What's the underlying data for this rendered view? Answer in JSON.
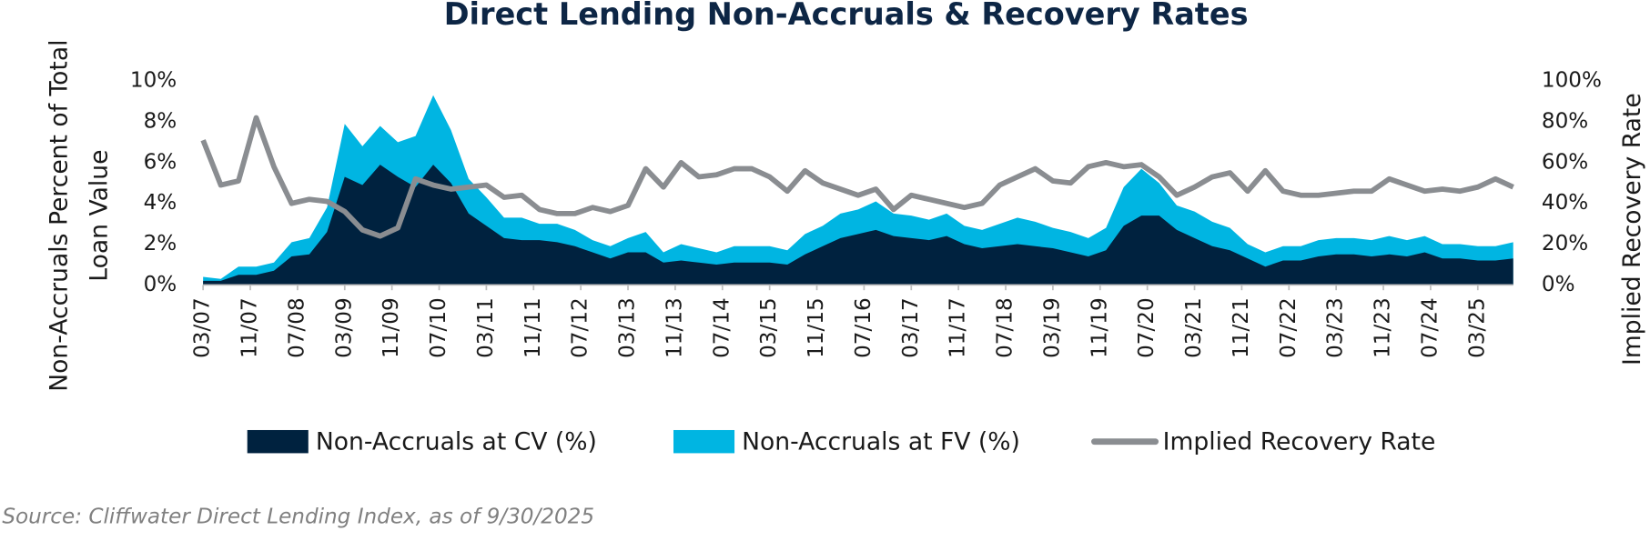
{
  "chart_data": {
    "type": "area-line",
    "title": "Direct Lending Non-Accruals & Recovery Rates",
    "y_label": [
      "Non-Accruals Percent of Total",
      "Loan Value"
    ],
    "y2_label": "Implied Recovery Rate",
    "source": "Source: Cliffwater Direct Lending Index, as of 9/30/2025",
    "x": [
      "03/07",
      "06/07",
      "09/07",
      "12/07",
      "03/08",
      "06/08",
      "09/08",
      "12/08",
      "03/09",
      "06/09",
      "09/09",
      "12/09",
      "03/10",
      "06/10",
      "09/10",
      "12/10",
      "03/11",
      "06/11",
      "09/11",
      "12/11",
      "03/12",
      "06/12",
      "09/12",
      "12/12",
      "03/13",
      "06/13",
      "09/13",
      "12/13",
      "03/14",
      "06/14",
      "09/14",
      "12/14",
      "03/15",
      "06/15",
      "09/15",
      "12/15",
      "03/16",
      "06/16",
      "09/16",
      "12/16",
      "03/17",
      "06/17",
      "09/17",
      "12/17",
      "03/18",
      "06/18",
      "09/18",
      "12/18",
      "03/19",
      "06/19",
      "09/19",
      "12/19",
      "03/20",
      "06/20",
      "09/20",
      "12/20",
      "03/21",
      "06/21",
      "09/21",
      "12/21",
      "03/22",
      "06/22",
      "09/22",
      "12/22",
      "03/23",
      "06/23",
      "09/23",
      "12/23",
      "03/24",
      "06/24",
      "09/24",
      "12/24",
      "03/25",
      "06/25",
      "09/25"
    ],
    "xticks": [
      "03/07",
      "11/07",
      "07/08",
      "03/09",
      "11/09",
      "07/10",
      "03/11",
      "11/11",
      "07/12",
      "03/13",
      "11/13",
      "07/14",
      "03/15",
      "11/15",
      "07/16",
      "03/17",
      "11/17",
      "07/18",
      "03/19",
      "11/19",
      "07/20",
      "03/21",
      "11/21",
      "07/22",
      "03/23",
      "11/23",
      "07/24",
      "03/25"
    ],
    "ylim": [
      0,
      10
    ],
    "yticks": [
      {
        "value": 0,
        "label": "0%"
      },
      {
        "value": 2,
        "label": "2%"
      },
      {
        "value": 4,
        "label": "4%"
      },
      {
        "value": 6,
        "label": "6%"
      },
      {
        "value": 8,
        "label": "8%"
      },
      {
        "value": 10,
        "label": "10%"
      }
    ],
    "y2lim": [
      0,
      100
    ],
    "y2ticks": [
      {
        "value": 0,
        "label": "0%"
      },
      {
        "value": 20,
        "label": "20%"
      },
      {
        "value": 40,
        "label": "40%"
      },
      {
        "value": 60,
        "label": "60%"
      },
      {
        "value": 80,
        "label": "80%"
      },
      {
        "value": 100,
        "label": "100%"
      }
    ],
    "series": [
      {
        "name": "Non-Accruals at CV (%)",
        "kind": "area",
        "color": "#00223f",
        "values": [
          0.2,
          0.2,
          0.5,
          0.5,
          0.7,
          1.4,
          1.5,
          2.6,
          5.3,
          4.9,
          5.9,
          5.3,
          4.8,
          5.9,
          5.0,
          3.5,
          2.9,
          2.3,
          2.2,
          2.2,
          2.1,
          1.9,
          1.6,
          1.3,
          1.6,
          1.6,
          1.1,
          1.2,
          1.1,
          1.0,
          1.1,
          1.1,
          1.1,
          1.0,
          1.5,
          1.9,
          2.3,
          2.5,
          2.7,
          2.4,
          2.3,
          2.2,
          2.4,
          2.0,
          1.8,
          1.9,
          2.0,
          1.9,
          1.8,
          1.6,
          1.4,
          1.7,
          2.9,
          3.4,
          3.4,
          2.7,
          2.3,
          1.9,
          1.7,
          1.3,
          0.9,
          1.2,
          1.2,
          1.4,
          1.5,
          1.5,
          1.4,
          1.5,
          1.4,
          1.6,
          1.3,
          1.3,
          1.2,
          1.2,
          1.3
        ]
      },
      {
        "name": "Non-Accruals at FV (%)",
        "kind": "area",
        "color": "#00b5e2",
        "values": [
          0.4,
          0.3,
          0.9,
          0.9,
          1.1,
          2.1,
          2.3,
          3.8,
          7.9,
          6.8,
          7.8,
          7.0,
          7.3,
          9.3,
          7.6,
          5.2,
          4.3,
          3.3,
          3.3,
          3.0,
          3.0,
          2.7,
          2.2,
          1.9,
          2.3,
          2.6,
          1.6,
          2.0,
          1.8,
          1.6,
          1.9,
          1.9,
          1.9,
          1.7,
          2.5,
          2.9,
          3.5,
          3.7,
          4.1,
          3.5,
          3.4,
          3.2,
          3.5,
          2.9,
          2.7,
          3.0,
          3.3,
          3.1,
          2.8,
          2.6,
          2.3,
          2.8,
          4.8,
          5.7,
          5.0,
          3.9,
          3.6,
          3.1,
          2.8,
          2.0,
          1.6,
          1.9,
          1.9,
          2.2,
          2.3,
          2.3,
          2.2,
          2.4,
          2.2,
          2.4,
          2.0,
          2.0,
          1.9,
          1.9,
          2.1
        ]
      },
      {
        "name": "Implied Recovery Rate",
        "kind": "line",
        "axis": "y2",
        "color": "#8a8d91",
        "values": [
          71,
          49,
          51,
          82,
          58,
          40,
          42,
          41,
          36,
          27,
          24,
          28,
          52,
          49,
          47,
          48,
          49,
          43,
          44,
          37,
          35,
          35,
          38,
          36,
          39,
          57,
          48,
          60,
          53,
          54,
          57,
          57,
          53,
          46,
          56,
          50,
          47,
          44,
          47,
          37,
          44,
          42,
          40,
          38,
          40,
          49,
          53,
          57,
          51,
          50,
          58,
          60,
          58,
          59,
          53,
          44,
          48,
          53,
          55,
          46,
          56,
          46,
          44,
          44,
          45,
          46,
          46,
          52,
          49,
          46,
          47,
          46,
          48,
          52,
          48
        ]
      }
    ]
  }
}
